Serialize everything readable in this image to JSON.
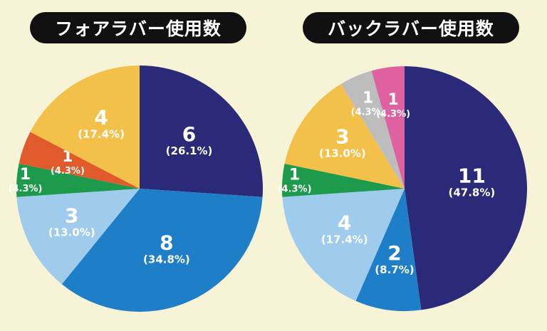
{
  "chart_data": [
    {
      "type": "pie",
      "title": "フォアラバー使用数",
      "slices": [
        {
          "value": 6,
          "percent_label": "(26.1%)",
          "color": "#2a2a78"
        },
        {
          "value": 8,
          "percent_label": "(34.8%)",
          "color": "#1e7fc8"
        },
        {
          "value": 3,
          "percent_label": "(13.0%)",
          "color": "#9fcbec"
        },
        {
          "value": 1,
          "percent_label": "(4.3%)",
          "color": "#1e9a4c"
        },
        {
          "value": 1,
          "percent_label": "(4.3%)",
          "color": "#e05a2b"
        },
        {
          "value": 4,
          "percent_label": "(17.4%)",
          "color": "#f3c04a"
        }
      ]
    },
    {
      "type": "pie",
      "title": "バックラバー使用数",
      "slices": [
        {
          "value": 11,
          "percent_label": "(47.8%)",
          "color": "#2a2a78"
        },
        {
          "value": 2,
          "percent_label": "(8.7%)",
          "color": "#1e7fc8"
        },
        {
          "value": 4,
          "percent_label": "(17.4%)",
          "color": "#9fcbec"
        },
        {
          "value": 1,
          "percent_label": "(4.3%)",
          "color": "#1e9a4c"
        },
        {
          "value": 3,
          "percent_label": "(13.0%)",
          "color": "#f3c04a"
        },
        {
          "value": 1,
          "percent_label": "(4.3%)",
          "color": "#bdbdbd"
        },
        {
          "value": 1,
          "percent_label": "(4.3%)",
          "color": "#e0619f"
        }
      ]
    }
  ]
}
